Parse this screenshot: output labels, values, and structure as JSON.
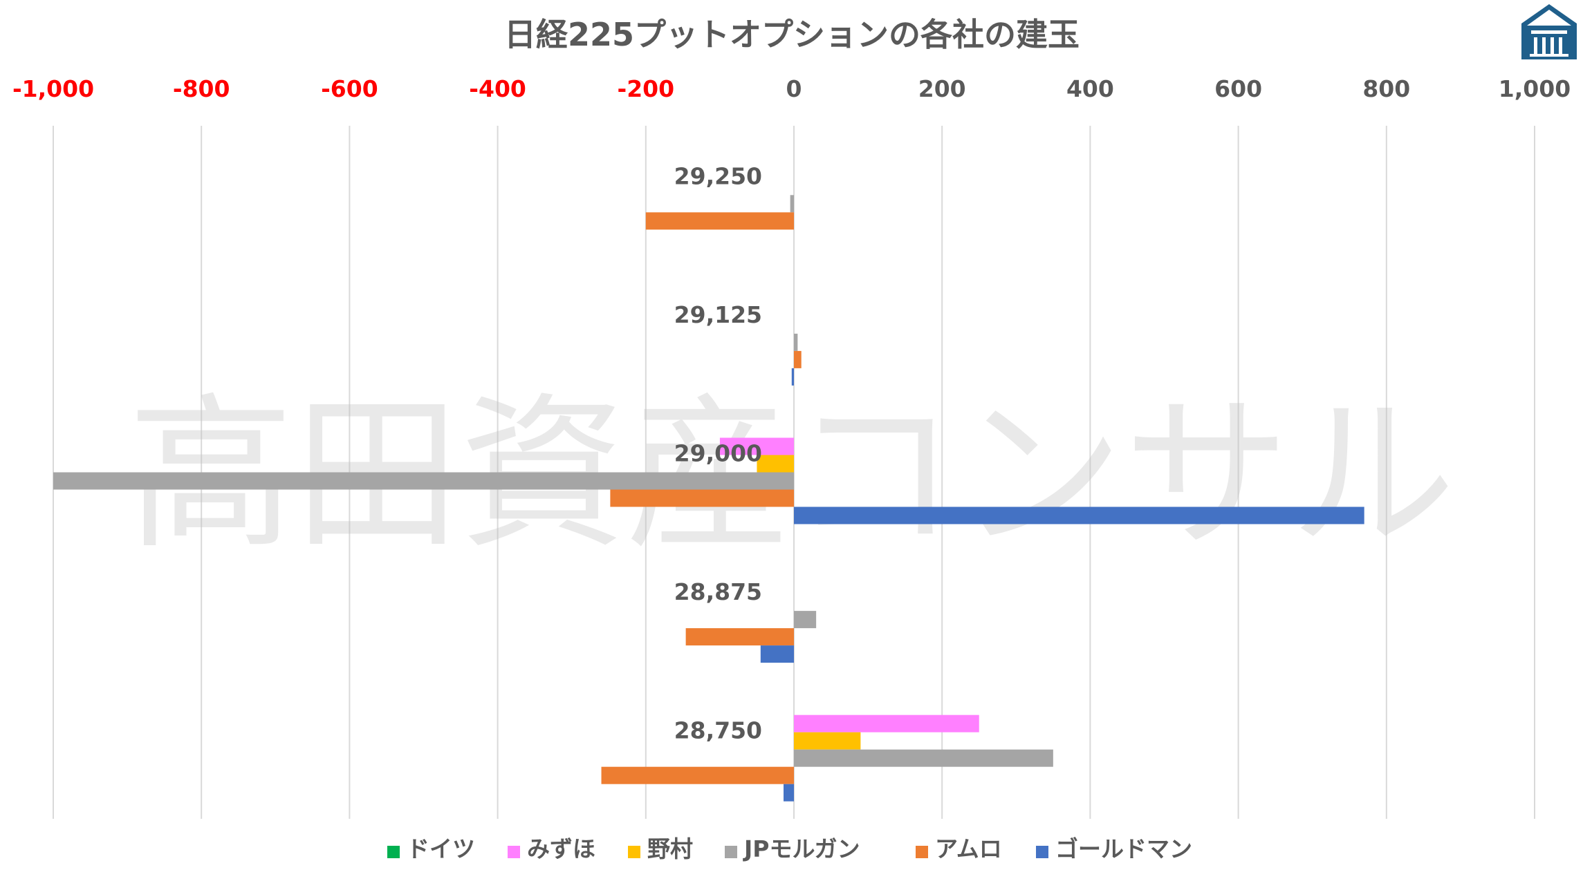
{
  "chart_data": {
    "type": "bar",
    "orientation": "horizontal",
    "title": "日経225プットオプションの各社の建玉",
    "categories": [
      "29,250",
      "29,125",
      "29,000",
      "28,875",
      "28,750"
    ],
    "series": [
      {
        "name": "ドイツ",
        "color": "#00B050",
        "values": [
          0,
          0,
          0,
          0,
          0
        ]
      },
      {
        "name": "みずほ",
        "color": "#FF80FF",
        "values": [
          0,
          0,
          -100,
          0,
          250
        ]
      },
      {
        "name": "野村",
        "color": "#FFC000",
        "values": [
          0,
          0,
          -50,
          0,
          90
        ]
      },
      {
        "name": "JPモルガン",
        "color": "#A5A5A5",
        "values": [
          -5,
          5,
          -1000,
          30,
          350
        ]
      },
      {
        "name": "アムロ",
        "color": "#ED7D31",
        "values": [
          -200,
          10,
          -248,
          -146,
          -260
        ]
      },
      {
        "name": "ゴールドマン",
        "color": "#4472C4",
        "values": [
          0,
          -3,
          770,
          -45,
          -14
        ]
      }
    ],
    "xlim": [
      -1000,
      1000
    ],
    "ticks": [
      -1000,
      -800,
      -600,
      -400,
      -200,
      0,
      200,
      400,
      600,
      800,
      1000
    ],
    "tick_labels": [
      "-1,000",
      "-800",
      "-600",
      "-400",
      "-200",
      "0",
      "200",
      "400",
      "600",
      "800",
      "1,000"
    ],
    "negative_tick_color": "#FF0000",
    "positive_tick_color": "#595959",
    "grid": true,
    "axis_position": "top",
    "legend_position": "bottom",
    "watermark": "高田資産コンサル",
    "logo_icon": "house-logo-icon"
  }
}
